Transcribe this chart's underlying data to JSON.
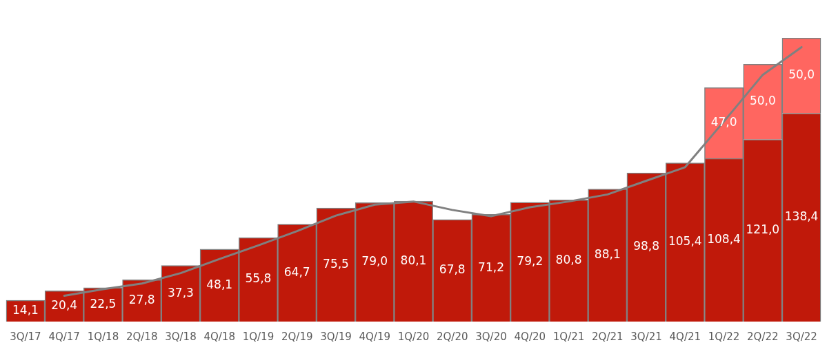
{
  "chart_data": {
    "type": "bar",
    "stacked": true,
    "legend": false,
    "grid": false,
    "tick_labels": "x",
    "categories": [
      "3Q/17",
      "4Q/17",
      "1Q/18",
      "2Q/18",
      "3Q/18",
      "4Q/18",
      "1Q/19",
      "2Q/19",
      "3Q/19",
      "4Q/19",
      "1Q/20",
      "2Q/20",
      "3Q/20",
      "4Q/20",
      "1Q/21",
      "2Q/21",
      "3Q/21",
      "4Q/21",
      "1Q/22",
      "2Q/22",
      "3Q/22"
    ],
    "series": [
      {
        "color": "#c0190a",
        "values": [
          14.1,
          20.4,
          22.5,
          27.8,
          37.3,
          48.1,
          55.8,
          64.7,
          75.5,
          79.0,
          80.1,
          67.8,
          71.2,
          79.2,
          80.8,
          88.1,
          98.8,
          105.4,
          108.4,
          121.0,
          138.4
        ],
        "value_labels": [
          "14,1",
          "20,4",
          "22,5",
          "27,8",
          "37,3",
          "48,1",
          "55,8",
          "64,7",
          "75,5",
          "79,0",
          "80,1",
          "67,8",
          "71,2",
          "79,2",
          "80,8",
          "88,1",
          "98,8",
          "105,4",
          "108,4",
          "121,0",
          "138,4"
        ]
      },
      {
        "color": "#ff6660",
        "values": [
          null,
          null,
          null,
          null,
          null,
          null,
          null,
          null,
          null,
          null,
          null,
          null,
          null,
          null,
          null,
          null,
          null,
          null,
          47.0,
          50.0,
          50.0
        ],
        "value_labels": [
          null,
          null,
          null,
          null,
          null,
          null,
          null,
          null,
          null,
          null,
          null,
          null,
          null,
          null,
          null,
          null,
          null,
          null,
          "47,0",
          "50,0",
          "50,0"
        ]
      },
      {
        "type": "line",
        "color": "#808080",
        "marker": "none",
        "line_style": "solid",
        "values": [
          null,
          17.2,
          21.5,
          25.3,
          32.2,
          41.6,
          50.6,
          60.1,
          70.4,
          77.7,
          79.8,
          74.2,
          70.0,
          76.0,
          79.8,
          84.5,
          93.6,
          102.6,
          133.0,
          164.0,
          182.4
        ]
      }
    ]
  }
}
